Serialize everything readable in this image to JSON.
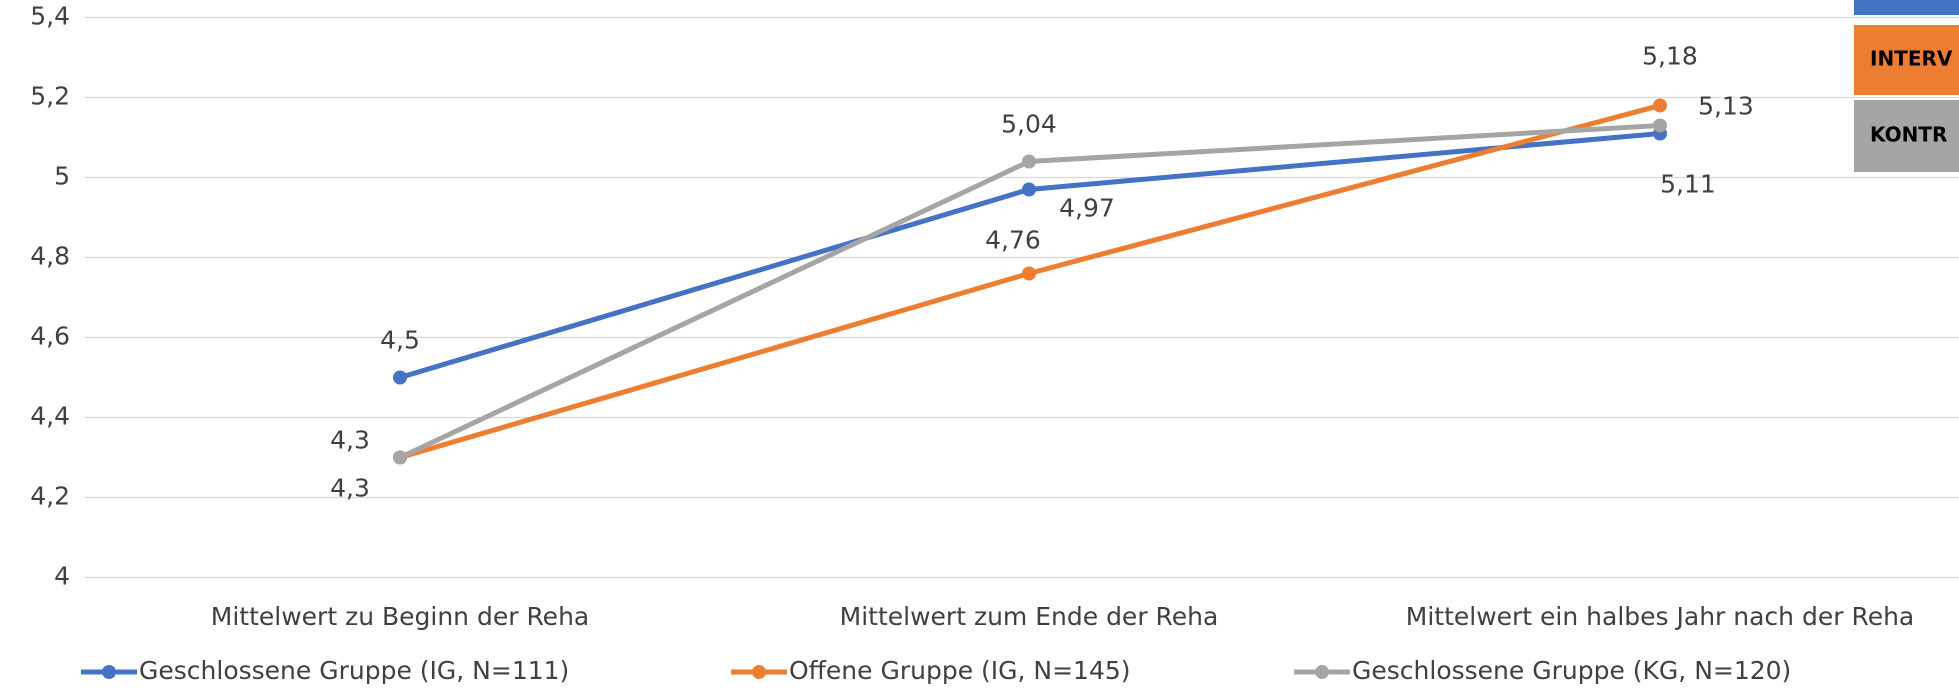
{
  "chart_data": {
    "type": "line",
    "categories": [
      "Mittelwert zu Beginn der Reha",
      "Mittelwert zum Ende der Reha",
      "Mittelwert ein halbes Jahr nach der Reha"
    ],
    "series": [
      {
        "name": "Geschlossene Gruppe (IG, N=111)",
        "color": "#4472c4",
        "values": [
          4.5,
          4.97,
          5.11
        ],
        "value_labels": [
          "4,5",
          "4,97",
          "5,11"
        ]
      },
      {
        "name": "Offene Gruppe (IG, N=145)",
        "color": "#ed7d31",
        "values": [
          4.3,
          4.76,
          5.18
        ],
        "value_labels": [
          "4,3",
          "4,76",
          "5,18"
        ]
      },
      {
        "name": "Geschlossene Gruppe (KG, N=120)",
        "color": "#a5a5a5",
        "values": [
          4.3,
          5.04,
          5.13
        ],
        "value_labels": [
          "4,3",
          "5,04",
          "5,13"
        ]
      }
    ],
    "ylim": [
      4,
      5.4
    ],
    "yticks": [
      4,
      {
        "value": 4.2,
        "label": "4,2"
      },
      {
        "value": 4.4,
        "label": "4,4"
      },
      {
        "value": 4.6,
        "label": "4,6"
      },
      {
        "value": 4.8,
        "label": "4,8"
      },
      5,
      {
        "value": 5.2,
        "label": "5,2"
      },
      {
        "value": 5.4,
        "label": "5,4"
      }
    ],
    "grid": true,
    "boxes": [
      {
        "label": "",
        "color": "#4472c4"
      },
      {
        "label": "INTERV",
        "color": "#ed7d31"
      },
      {
        "label": "KONTR",
        "color": "#a5a5a5"
      }
    ]
  }
}
